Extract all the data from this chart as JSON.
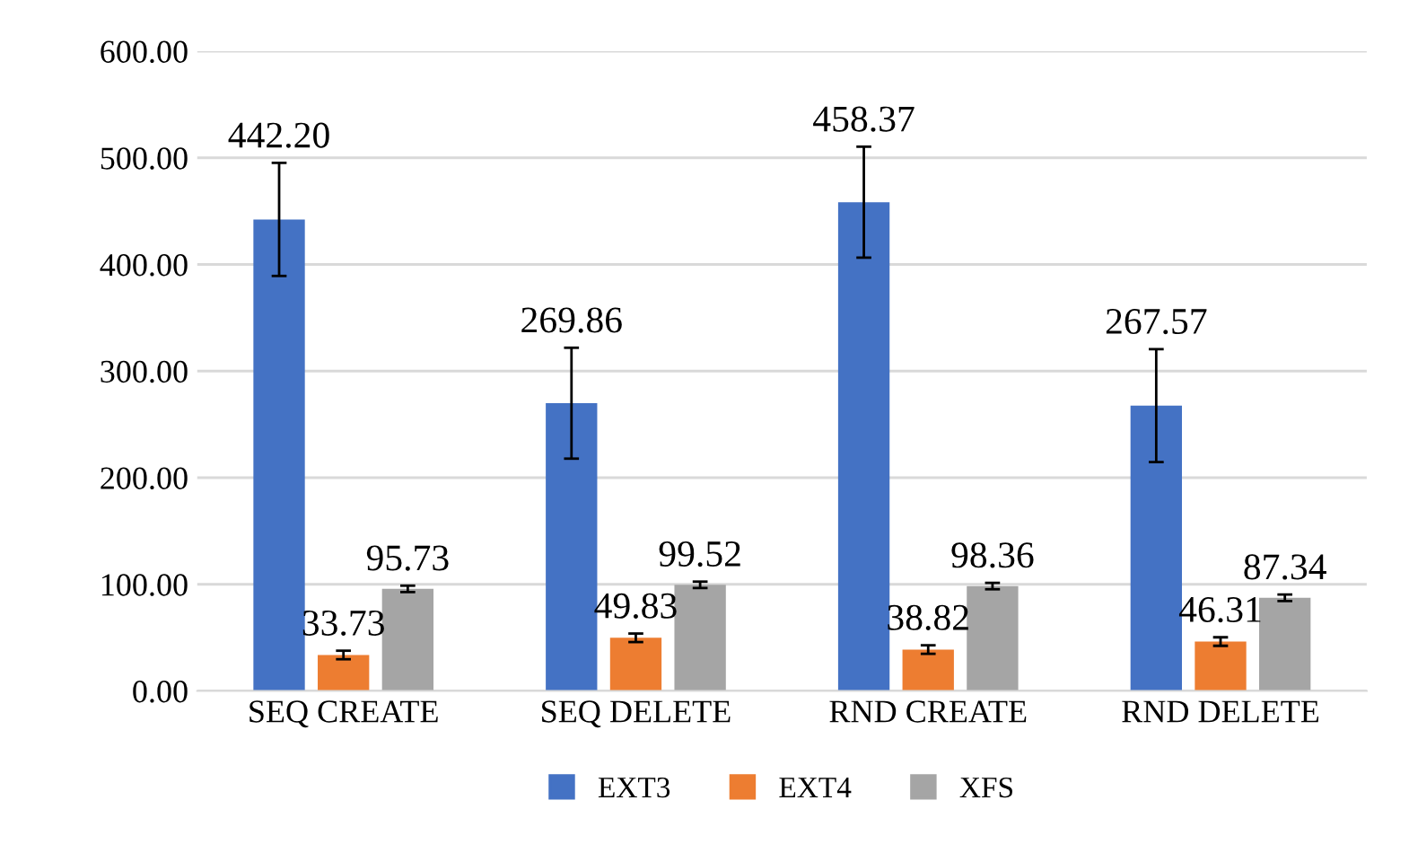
{
  "chart_data": {
    "type": "bar",
    "categories": [
      "SEQ CREATE",
      "SEQ DELETE",
      "RND CREATE",
      "RND DELETE"
    ],
    "series": [
      {
        "name": "EXT3",
        "color": "#4472c4",
        "values": [
          442.2,
          269.86,
          458.37,
          267.57
        ],
        "errors": [
          53,
          52,
          52,
          53
        ],
        "value_labels": [
          "442.20",
          "269.86",
          "458.37",
          "267.57"
        ]
      },
      {
        "name": "EXT4",
        "color": "#ed7d31",
        "values": [
          33.73,
          49.83,
          38.82,
          46.31
        ],
        "errors": [
          4,
          4,
          4,
          4
        ],
        "value_labels": [
          "33.73",
          "49.83",
          "38.82",
          "46.31"
        ]
      },
      {
        "name": "XFS",
        "color": "#a5a5a5",
        "values": [
          95.73,
          99.52,
          98.36,
          87.34
        ],
        "errors": [
          3,
          3,
          3,
          3
        ],
        "value_labels": [
          "95.73",
          "99.52",
          "98.36",
          "87.34"
        ]
      }
    ],
    "ylim": [
      0,
      600
    ],
    "yticks": [
      {
        "value": 0,
        "label": "0.00"
      },
      {
        "value": 100,
        "label": "100.00"
      },
      {
        "value": 200,
        "label": "200.00"
      },
      {
        "value": 300,
        "label": "300.00"
      },
      {
        "value": 400,
        "label": "400.00"
      },
      {
        "value": 500,
        "label": "500.00"
      },
      {
        "value": 600,
        "label": "600.00"
      }
    ],
    "grid": "y",
    "legend": "bottom"
  }
}
